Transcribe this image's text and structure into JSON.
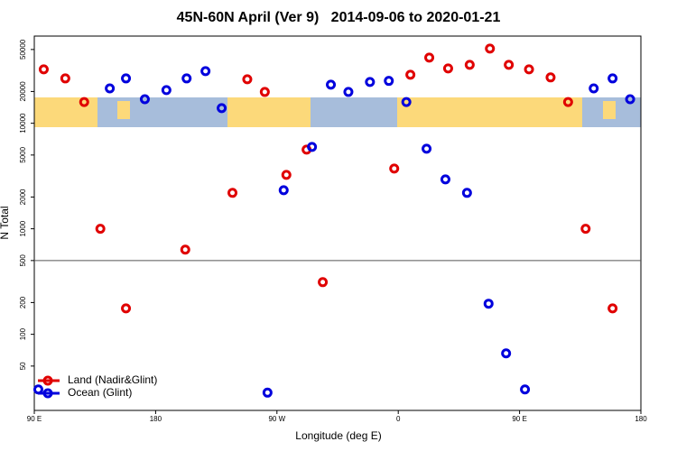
{
  "chart_data": {
    "type": "scatter",
    "title": "45N-60N April (Ver 9)   2014-09-06 to 2020-01-21",
    "x_label": "Longitude (deg E)",
    "y_label": "N Total",
    "log_y": true,
    "xlim": [
      90,
      540
    ],
    "xticks": [
      {
        "value": 90,
        "label": "90 E"
      },
      180,
      {
        "value": 270,
        "label": "90 W"
      },
      {
        "value": 360,
        "label": "0"
      },
      {
        "value": 450,
        "label": "90 E"
      },
      {
        "value": 540,
        "label": "180"
      }
    ],
    "ylim": [
      19,
      67000
    ],
    "yticks": [
      50,
      100,
      200,
      500,
      1000,
      2000,
      5000,
      10000,
      20000,
      50000
    ],
    "hline": 500,
    "legend": "bottom-left",
    "series": [
      {
        "name": "Land (Nadir&Glint)",
        "color": "#e00000",
        "x": [
          97,
          113,
          127,
          139,
          158,
          202,
          237,
          248,
          261,
          277,
          292,
          304,
          357,
          369,
          383,
          397,
          413,
          428,
          442,
          457,
          473,
          486,
          499,
          519
        ],
        "values": [
          32400,
          26600,
          15900,
          1000,
          176,
          634,
          2190,
          26100,
          19800,
          3240,
          5620,
          312,
          3720,
          28800,
          41900,
          33100,
          35800,
          51000,
          35800,
          32400,
          27200,
          15900,
          1000,
          176
        ]
      },
      {
        "name": "Ocean (Glint)",
        "color": "#0000dd",
        "x": [
          93,
          146,
          158,
          172,
          188,
          203,
          217,
          229,
          263,
          275,
          296,
          310,
          323,
          339,
          353,
          366,
          381,
          395,
          411,
          427,
          440,
          454,
          505,
          519,
          532
        ],
        "values": [
          30,
          21400,
          26600,
          16900,
          20600,
          26600,
          31200,
          13900,
          28,
          2320,
          5970,
          23200,
          19800,
          24600,
          25200,
          15900,
          5740,
          2940,
          2190,
          195,
          66,
          30,
          21400,
          26600,
          16900
        ]
      }
    ]
  }
}
